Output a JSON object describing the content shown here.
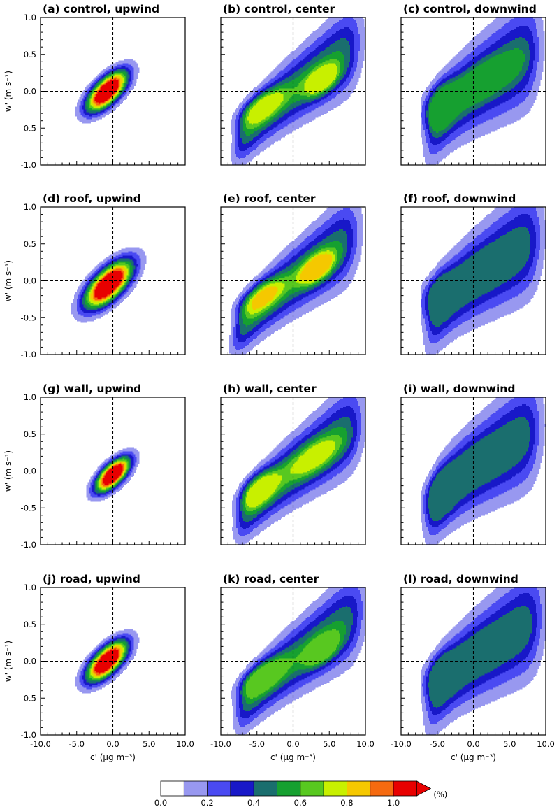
{
  "chart_data": {
    "type": "contour",
    "figure_description": "Joint frequency distribution (%) of concentration fluctuation c' and vertical velocity fluctuation w'",
    "xlabel": "c' (μg m⁻³)",
    "ylabel": "w' (m s⁻¹)",
    "xlim": [
      -10.0,
      10.0
    ],
    "ylim": [
      -1.0,
      1.0
    ],
    "x_ticks": [
      "-10.0",
      "-5.0",
      "0.0",
      "5.0",
      "10.0"
    ],
    "y_ticks": [
      "-1.0",
      "-0.5",
      "0.0",
      "0.5",
      "1.0"
    ],
    "reference_lines": {
      "x": 0.0,
      "y": 0.0,
      "style": "dashed"
    },
    "colorbar": {
      "unit": "(%)",
      "tick_labels": [
        "0.0",
        "0.2",
        "0.4",
        "0.6",
        "0.8",
        "1.0"
      ],
      "levels": [
        0.0,
        0.1,
        0.2,
        0.3,
        0.4,
        0.5,
        0.6,
        0.7,
        0.8,
        0.9,
        1.0
      ],
      "colors": [
        "#ffffff",
        "#9898f0",
        "#4a4af2",
        "#1818c8",
        "#1a6e6e",
        "#16a030",
        "#58c820",
        "#c8f000",
        "#f5c800",
        "#f56a10",
        "#e80000"
      ],
      "extend": "max"
    },
    "panels": [
      {
        "title": "(a) control, upwind",
        "row": 0,
        "col": 0,
        "type": "upwind",
        "peak": [
          -0.8,
          0.0
        ],
        "c_range": [
          -5.0,
          6.0
        ],
        "w_range": [
          -0.33,
          0.27
        ],
        "max_level_pct": 1.0
      },
      {
        "title": "(b) control, center",
        "row": 0,
        "col": 1,
        "type": "center",
        "peak": [
          4.0,
          0.15
        ],
        "c_range": [
          -7.8,
          8.8
        ],
        "w_range": [
          -0.75,
          0.5
        ],
        "max_level_pct": 0.7
      },
      {
        "title": "(c) control, downwind",
        "row": 0,
        "col": 2,
        "type": "downwind",
        "peak": [
          -5.0,
          -0.2
        ],
        "c_range": [
          -6.0,
          8.6
        ],
        "w_range": [
          -0.78,
          0.56
        ],
        "max_level_pct": 0.5
      },
      {
        "title": "(d) roof, upwind",
        "row": 1,
        "col": 0,
        "type": "upwind",
        "peak": [
          -0.6,
          -0.05
        ],
        "c_range": [
          -6.0,
          7.0
        ],
        "w_range": [
          -0.38,
          0.36
        ],
        "max_level_pct": 1.0
      },
      {
        "title": "(e) roof, center",
        "row": 1,
        "col": 1,
        "type": "center",
        "peak": [
          3.3,
          0.17
        ],
        "c_range": [
          -8.0,
          8.5
        ],
        "w_range": [
          -0.8,
          0.5
        ],
        "max_level_pct": 0.8
      },
      {
        "title": "(f) roof, downwind",
        "row": 1,
        "col": 2,
        "type": "downwind",
        "peak": [
          -5.3,
          -0.2
        ],
        "c_range": [
          -6.0,
          8.8
        ],
        "w_range": [
          -0.7,
          0.48
        ],
        "max_level_pct": 0.4
      },
      {
        "title": "(g) wall, upwind",
        "row": 2,
        "col": 0,
        "type": "upwind",
        "peak": [
          0.0,
          -0.05
        ],
        "c_range": [
          -4.0,
          5.3
        ],
        "w_range": [
          -0.4,
          0.28
        ],
        "max_level_pct": 1.0
      },
      {
        "title": "(h) wall, center",
        "row": 2,
        "col": 1,
        "type": "center",
        "peak": [
          -4.8,
          -0.25
        ],
        "c_range": [
          -7.5,
          9.0
        ],
        "w_range": [
          -0.78,
          0.55
        ],
        "max_level_pct": 0.7
      },
      {
        "title": "(i) wall, downwind",
        "row": 2,
        "col": 2,
        "type": "downwind",
        "peak": [
          -4.8,
          -0.3
        ],
        "c_range": [
          -6.0,
          8.7
        ],
        "w_range": [
          -0.8,
          0.55
        ],
        "max_level_pct": 0.4
      },
      {
        "title": "(j) road, upwind",
        "row": 3,
        "col": 0,
        "type": "upwind",
        "peak": [
          -0.8,
          0.0
        ],
        "c_range": [
          -5.0,
          6.0
        ],
        "w_range": [
          -0.33,
          0.28
        ],
        "max_level_pct": 1.0
      },
      {
        "title": "(k) road, center",
        "row": 3,
        "col": 1,
        "type": "center",
        "peak": [
          4.0,
          0.15
        ],
        "c_range": [
          -7.5,
          9.2
        ],
        "w_range": [
          -0.72,
          0.48
        ],
        "max_level_pct": 0.6
      },
      {
        "title": "(l) road, downwind",
        "row": 3,
        "col": 2,
        "type": "downwind",
        "peak": [
          -5.0,
          -0.2
        ],
        "c_range": [
          -6.0,
          9.0
        ],
        "w_range": [
          -0.78,
          0.55
        ],
        "max_level_pct": 0.4
      }
    ]
  }
}
